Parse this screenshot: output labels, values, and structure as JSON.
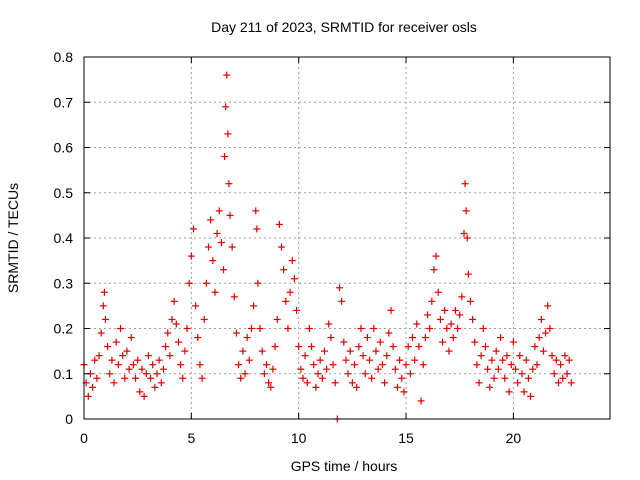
{
  "chart_data": {
    "type": "scatter",
    "title": "Day 211 of 2023, SRMTID for receiver osls",
    "xlabel": "GPS time / hours",
    "ylabel": "SRMTID / TECUs",
    "xlim": [
      0,
      24.5
    ],
    "ylim": [
      0,
      0.8
    ],
    "xticks": [
      0,
      5,
      10,
      15,
      20
    ],
    "xtick_labels": [
      "0",
      "5",
      "10",
      "15",
      "20"
    ],
    "yticks": [
      0,
      0.1,
      0.2,
      0.3,
      0.4,
      0.5,
      0.6,
      0.7,
      0.8
    ],
    "ytick_labels": [
      "0",
      "0.1",
      "0.2",
      "0.3",
      "0.4",
      "0.5",
      "0.6",
      "0.7",
      "0.8"
    ],
    "grid": true,
    "marker": "+",
    "color": "#e00000",
    "series": [
      {
        "name": "SRMTID",
        "points": [
          [
            0.0,
            0.12
          ],
          [
            0.1,
            0.08
          ],
          [
            0.2,
            0.05
          ],
          [
            0.3,
            0.1
          ],
          [
            0.4,
            0.07
          ],
          [
            0.5,
            0.13
          ],
          [
            0.6,
            0.09
          ],
          [
            0.7,
            0.14
          ],
          [
            0.8,
            0.19
          ],
          [
            0.9,
            0.25
          ],
          [
            0.95,
            0.28
          ],
          [
            1.0,
            0.22
          ],
          [
            1.1,
            0.16
          ],
          [
            1.2,
            0.1
          ],
          [
            1.3,
            0.13
          ],
          [
            1.4,
            0.08
          ],
          [
            1.5,
            0.17
          ],
          [
            1.6,
            0.12
          ],
          [
            1.7,
            0.2
          ],
          [
            1.8,
            0.14
          ],
          [
            1.9,
            0.09
          ],
          [
            2.0,
            0.15
          ],
          [
            2.1,
            0.11
          ],
          [
            2.2,
            0.18
          ],
          [
            2.3,
            0.12
          ],
          [
            2.4,
            0.09
          ],
          [
            2.5,
            0.13
          ],
          [
            2.6,
            0.06
          ],
          [
            2.7,
            0.11
          ],
          [
            2.8,
            0.05
          ],
          [
            2.9,
            0.1
          ],
          [
            3.0,
            0.14
          ],
          [
            3.1,
            0.09
          ],
          [
            3.2,
            0.12
          ],
          [
            3.3,
            0.07
          ],
          [
            3.4,
            0.1
          ],
          [
            3.5,
            0.13
          ],
          [
            3.6,
            0.08
          ],
          [
            3.7,
            0.11
          ],
          [
            3.8,
            0.16
          ],
          [
            3.9,
            0.19
          ],
          [
            4.0,
            0.14
          ],
          [
            4.1,
            0.22
          ],
          [
            4.2,
            0.26
          ],
          [
            4.3,
            0.21
          ],
          [
            4.4,
            0.17
          ],
          [
            4.5,
            0.12
          ],
          [
            4.6,
            0.09
          ],
          [
            4.7,
            0.15
          ],
          [
            4.8,
            0.2
          ],
          [
            4.9,
            0.3
          ],
          [
            5.0,
            0.36
          ],
          [
            5.1,
            0.42
          ],
          [
            5.2,
            0.25
          ],
          [
            5.3,
            0.18
          ],
          [
            5.4,
            0.12
          ],
          [
            5.5,
            0.09
          ],
          [
            5.6,
            0.22
          ],
          [
            5.7,
            0.3
          ],
          [
            5.8,
            0.38
          ],
          [
            5.9,
            0.44
          ],
          [
            6.0,
            0.35
          ],
          [
            6.1,
            0.28
          ],
          [
            6.2,
            0.41
          ],
          [
            6.3,
            0.46
          ],
          [
            6.4,
            0.39
          ],
          [
            6.5,
            0.33
          ],
          [
            6.55,
            0.58
          ],
          [
            6.6,
            0.69
          ],
          [
            6.65,
            0.76
          ],
          [
            6.7,
            0.63
          ],
          [
            6.75,
            0.52
          ],
          [
            6.8,
            0.45
          ],
          [
            6.9,
            0.38
          ],
          [
            7.0,
            0.27
          ],
          [
            7.1,
            0.19
          ],
          [
            7.2,
            0.12
          ],
          [
            7.3,
            0.09
          ],
          [
            7.4,
            0.15
          ],
          [
            7.5,
            0.1
          ],
          [
            7.6,
            0.18
          ],
          [
            7.7,
            0.13
          ],
          [
            7.8,
            0.2
          ],
          [
            7.9,
            0.25
          ],
          [
            8.0,
            0.46
          ],
          [
            8.05,
            0.42
          ],
          [
            8.1,
            0.3
          ],
          [
            8.2,
            0.2
          ],
          [
            8.3,
            0.15
          ],
          [
            8.4,
            0.1
          ],
          [
            8.5,
            0.12
          ],
          [
            8.6,
            0.08
          ],
          [
            8.7,
            0.07
          ],
          [
            8.8,
            0.11
          ],
          [
            8.9,
            0.16
          ],
          [
            9.0,
            0.22
          ],
          [
            9.1,
            0.43
          ],
          [
            9.2,
            0.38
          ],
          [
            9.3,
            0.33
          ],
          [
            9.4,
            0.26
          ],
          [
            9.5,
            0.2
          ],
          [
            9.6,
            0.28
          ],
          [
            9.7,
            0.35
          ],
          [
            9.8,
            0.31
          ],
          [
            9.9,
            0.24
          ],
          [
            10.0,
            0.16
          ],
          [
            10.1,
            0.11
          ],
          [
            10.2,
            0.09
          ],
          [
            10.3,
            0.14
          ],
          [
            10.4,
            0.08
          ],
          [
            10.5,
            0.2
          ],
          [
            10.6,
            0.16
          ],
          [
            10.7,
            0.12
          ],
          [
            10.8,
            0.07
          ],
          [
            10.9,
            0.1
          ],
          [
            11.0,
            0.13
          ],
          [
            11.1,
            0.09
          ],
          [
            11.2,
            0.15
          ],
          [
            11.3,
            0.11
          ],
          [
            11.4,
            0.21
          ],
          [
            11.5,
            0.18
          ],
          [
            11.6,
            0.12
          ],
          [
            11.7,
            0.08
          ],
          [
            11.8,
            0.0
          ],
          [
            11.9,
            0.29
          ],
          [
            12.0,
            0.26
          ],
          [
            12.1,
            0.17
          ],
          [
            12.2,
            0.13
          ],
          [
            12.3,
            0.1
          ],
          [
            12.4,
            0.15
          ],
          [
            12.5,
            0.08
          ],
          [
            12.6,
            0.12
          ],
          [
            12.7,
            0.07
          ],
          [
            12.8,
            0.16
          ],
          [
            12.9,
            0.2
          ],
          [
            13.0,
            0.14
          ],
          [
            13.1,
            0.1
          ],
          [
            13.2,
            0.18
          ],
          [
            13.3,
            0.13
          ],
          [
            13.4,
            0.09
          ],
          [
            13.5,
            0.2
          ],
          [
            13.6,
            0.15
          ],
          [
            13.7,
            0.11
          ],
          [
            13.8,
            0.17
          ],
          [
            13.9,
            0.12
          ],
          [
            14.0,
            0.08
          ],
          [
            14.1,
            0.14
          ],
          [
            14.2,
            0.19
          ],
          [
            14.3,
            0.24
          ],
          [
            14.4,
            0.16
          ],
          [
            14.5,
            0.11
          ],
          [
            14.6,
            0.07
          ],
          [
            14.7,
            0.13
          ],
          [
            14.8,
            0.09
          ],
          [
            14.9,
            0.06
          ],
          [
            15.0,
            0.12
          ],
          [
            15.1,
            0.16
          ],
          [
            15.2,
            0.1
          ],
          [
            15.3,
            0.18
          ],
          [
            15.4,
            0.13
          ],
          [
            15.5,
            0.21
          ],
          [
            15.6,
            0.16
          ],
          [
            15.7,
            0.04
          ],
          [
            15.8,
            0.12
          ],
          [
            15.9,
            0.18
          ],
          [
            16.0,
            0.23
          ],
          [
            16.1,
            0.2
          ],
          [
            16.2,
            0.26
          ],
          [
            16.3,
            0.33
          ],
          [
            16.4,
            0.36
          ],
          [
            16.5,
            0.28
          ],
          [
            16.6,
            0.22
          ],
          [
            16.7,
            0.17
          ],
          [
            16.8,
            0.24
          ],
          [
            16.9,
            0.2
          ],
          [
            17.0,
            0.15
          ],
          [
            17.1,
            0.21
          ],
          [
            17.2,
            0.18
          ],
          [
            17.3,
            0.24
          ],
          [
            17.4,
            0.2
          ],
          [
            17.5,
            0.23
          ],
          [
            17.6,
            0.27
          ],
          [
            17.7,
            0.41
          ],
          [
            17.75,
            0.52
          ],
          [
            17.8,
            0.46
          ],
          [
            17.85,
            0.4
          ],
          [
            17.9,
            0.32
          ],
          [
            18.0,
            0.26
          ],
          [
            18.1,
            0.22
          ],
          [
            18.2,
            0.17
          ],
          [
            18.3,
            0.12
          ],
          [
            18.4,
            0.08
          ],
          [
            18.5,
            0.14
          ],
          [
            18.6,
            0.2
          ],
          [
            18.7,
            0.16
          ],
          [
            18.8,
            0.11
          ],
          [
            18.9,
            0.07
          ],
          [
            19.0,
            0.13
          ],
          [
            19.1,
            0.09
          ],
          [
            19.2,
            0.15
          ],
          [
            19.3,
            0.11
          ],
          [
            19.4,
            0.18
          ],
          [
            19.5,
            0.13
          ],
          [
            19.6,
            0.09
          ],
          [
            19.7,
            0.14
          ],
          [
            19.8,
            0.06
          ],
          [
            19.9,
            0.12
          ],
          [
            20.0,
            0.17
          ],
          [
            20.1,
            0.11
          ],
          [
            20.2,
            0.08
          ],
          [
            20.3,
            0.14
          ],
          [
            20.4,
            0.1
          ],
          [
            20.5,
            0.06
          ],
          [
            20.6,
            0.13
          ],
          [
            20.7,
            0.09
          ],
          [
            20.8,
            0.05
          ],
          [
            20.9,
            0.11
          ],
          [
            21.0,
            0.16
          ],
          [
            21.1,
            0.12
          ],
          [
            21.2,
            0.18
          ],
          [
            21.3,
            0.22
          ],
          [
            21.4,
            0.15
          ],
          [
            21.5,
            0.19
          ],
          [
            21.6,
            0.25
          ],
          [
            21.7,
            0.2
          ],
          [
            21.8,
            0.14
          ],
          [
            21.9,
            0.1
          ],
          [
            22.0,
            0.13
          ],
          [
            22.1,
            0.08
          ],
          [
            22.2,
            0.12
          ],
          [
            22.3,
            0.09
          ],
          [
            22.4,
            0.14
          ],
          [
            22.5,
            0.1
          ],
          [
            22.6,
            0.13
          ],
          [
            22.7,
            0.08
          ]
        ]
      }
    ]
  }
}
